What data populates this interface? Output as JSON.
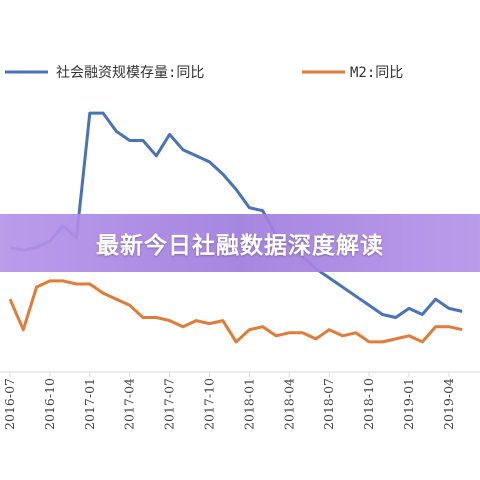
{
  "banner": {
    "title": "最新今日社融数据深度解读"
  },
  "colors": {
    "series_1": "#4A72B8",
    "series_2": "#E07B39",
    "banner": "#A07DDE"
  },
  "chart_data": {
    "type": "line",
    "legend_position": "top",
    "grid": false,
    "xlabel": "",
    "ylabel": "",
    "x_tick_labels": [
      "2016-07",
      "2016-10",
      "2017-01",
      "2017-04",
      "2017-07",
      "2017-10",
      "2018-01",
      "2018-04",
      "2018-07",
      "2018-10",
      "2019-01",
      "2019-04"
    ],
    "months": [
      "2016-07",
      "2016-08",
      "2016-09",
      "2016-10",
      "2016-11",
      "2016-12",
      "2017-01",
      "2017-02",
      "2017-03",
      "2017-04",
      "2017-05",
      "2017-06",
      "2017-07",
      "2017-08",
      "2017-09",
      "2017-10",
      "2017-11",
      "2017-12",
      "2018-01",
      "2018-02",
      "2018-03",
      "2018-04",
      "2018-05",
      "2018-06",
      "2018-07",
      "2018-08",
      "2018-09",
      "2018-10",
      "2018-11",
      "2018-12",
      "2019-01",
      "2019-02",
      "2019-03",
      "2019-04",
      "2019-05"
    ],
    "series": [
      {
        "name": "社会融资规模存量:同比",
        "values": [
          12.5,
          12.4,
          12.5,
          12.7,
          13.2,
          12.8,
          16.9,
          16.9,
          16.3,
          16.0,
          16.0,
          15.5,
          16.2,
          15.7,
          15.5,
          15.3,
          14.9,
          14.4,
          13.8,
          13.7,
          12.9,
          12.6,
          12.2,
          11.8,
          11.5,
          11.2,
          10.9,
          10.6,
          10.3,
          10.2,
          10.5,
          10.3,
          10.8,
          10.5,
          10.4
        ]
      },
      {
        "name": "M2:同比",
        "values": [
          10.8,
          9.8,
          11.2,
          11.4,
          11.4,
          11.3,
          11.3,
          11.0,
          10.8,
          10.6,
          10.2,
          10.2,
          10.1,
          9.9,
          10.1,
          10.0,
          10.1,
          9.4,
          9.8,
          9.9,
          9.6,
          9.7,
          9.7,
          9.5,
          9.8,
          9.6,
          9.7,
          9.4,
          9.4,
          9.5,
          9.6,
          9.4,
          9.9,
          9.9,
          9.8
        ]
      }
    ]
  }
}
